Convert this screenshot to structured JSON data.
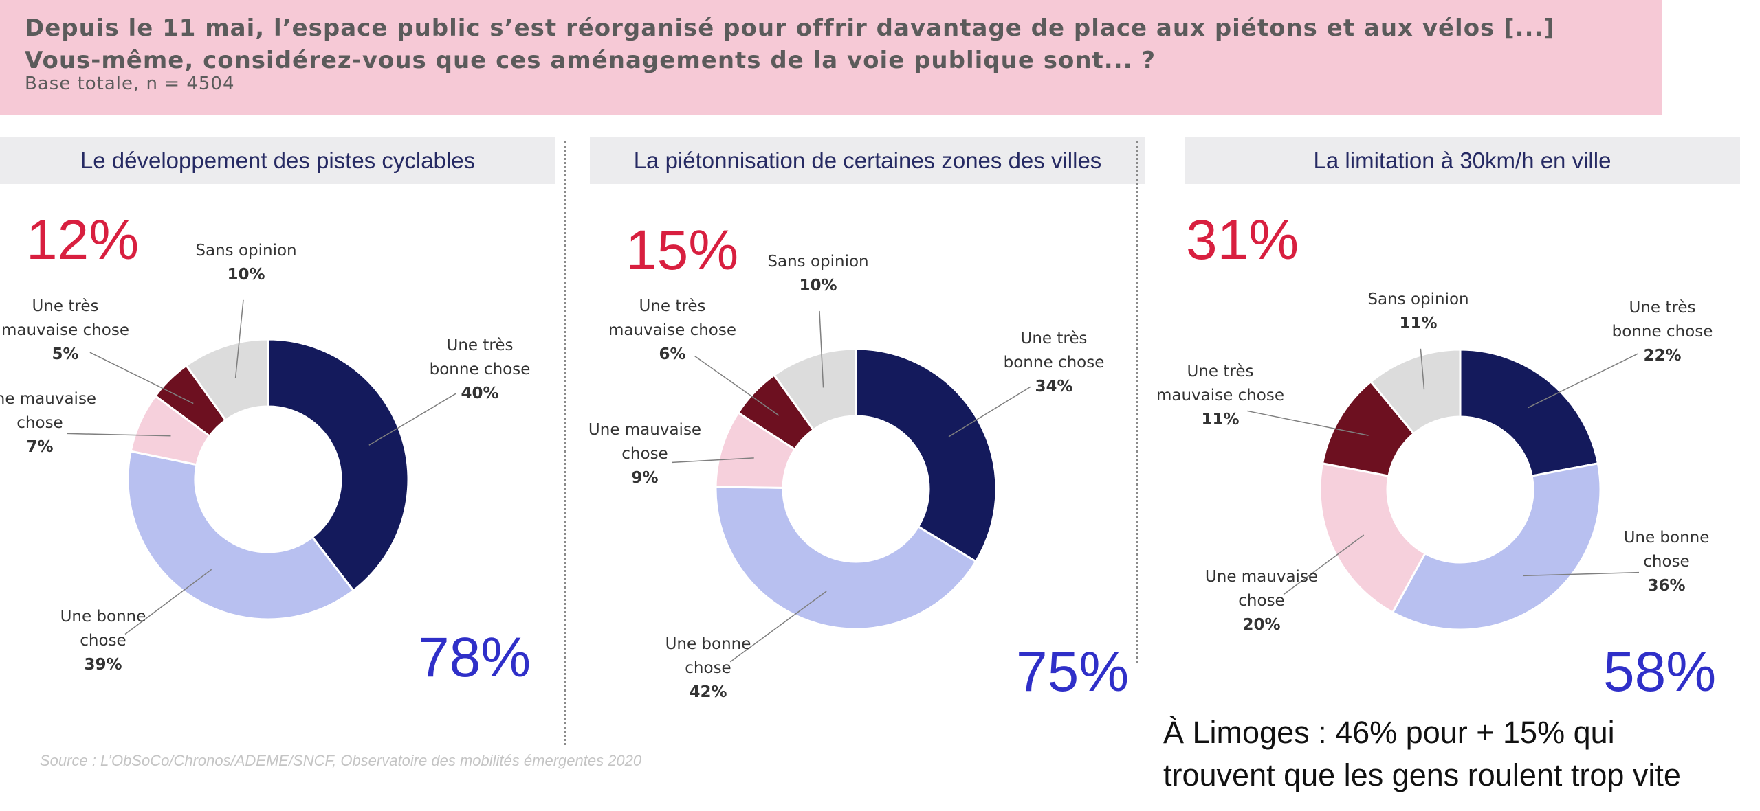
{
  "question": {
    "text": "Depuis le 11 mai, l’espace public s’est réorganisé pour offrir davantage de place aux piétons et aux vélos [...] Vous-même, considérez-vous que ces aménagements de la voie publique sont... ?",
    "base": "Base totale, n = 4504"
  },
  "note": {
    "line1": "À Limoges : 46% pour + 15% qui",
    "line2": "trouvent que les gens roulent trop vite"
  },
  "source": "Source : L’ObSoCo/Chronos/ADEME/SNCF, Observatoire des mobilités émergentes 2020",
  "colors": {
    "tres_bonne": "#141a5c",
    "bonne": "#b8c0f0",
    "mauvaise": "#f6d0dc",
    "tres_mauvaise": "#6d1020",
    "sans_opinion": "#dcdcdc",
    "negative_total": "#d81f3f",
    "positive_total": "#2f2fc8"
  },
  "chart_data": [
    {
      "type": "pie",
      "title": "Le développement des pistes cyclables",
      "negative_total": "12%",
      "positive_total": "78%",
      "slices": [
        {
          "key": "tres_bonne",
          "label": [
            "Une très",
            "bonne chose"
          ],
          "value": 40,
          "text": "40%"
        },
        {
          "key": "bonne",
          "label": [
            "Une bonne",
            "chose"
          ],
          "value": 39,
          "text": "39%"
        },
        {
          "key": "mauvaise",
          "label": [
            "Une mauvaise",
            "chose"
          ],
          "value": 7,
          "text": "7%"
        },
        {
          "key": "tres_mauvaise",
          "label": [
            "Une très",
            "mauvaise chose"
          ],
          "value": 5,
          "text": "5%"
        },
        {
          "key": "sans_opinion",
          "label": [
            "Sans opinion"
          ],
          "value": 10,
          "text": "10%"
        }
      ]
    },
    {
      "type": "pie",
      "title": "La piétonnisation de certaines zones des villes",
      "negative_total": "15%",
      "positive_total": "75%",
      "slices": [
        {
          "key": "tres_bonne",
          "label": [
            "Une très",
            "bonne chose"
          ],
          "value": 34,
          "text": "34%"
        },
        {
          "key": "bonne",
          "label": [
            "Une bonne",
            "chose"
          ],
          "value": 42,
          "text": "42%"
        },
        {
          "key": "mauvaise",
          "label": [
            "Une mauvaise",
            "chose"
          ],
          "value": 9,
          "text": "9%"
        },
        {
          "key": "tres_mauvaise",
          "label": [
            "Une très",
            "mauvaise chose"
          ],
          "value": 6,
          "text": "6%"
        },
        {
          "key": "sans_opinion",
          "label": [
            "Sans opinion"
          ],
          "value": 10,
          "text": "10%"
        }
      ]
    },
    {
      "type": "pie",
      "title": "La limitation à 30km/h en ville",
      "negative_total": "31%",
      "positive_total": "58%",
      "slices": [
        {
          "key": "tres_bonne",
          "label": [
            "Une très",
            "bonne chose"
          ],
          "value": 22,
          "text": "22%"
        },
        {
          "key": "bonne",
          "label": [
            "Une bonne",
            "chose"
          ],
          "value": 36,
          "text": "36%"
        },
        {
          "key": "mauvaise",
          "label": [
            "Une mauvaise",
            "chose"
          ],
          "value": 20,
          "text": "20%"
        },
        {
          "key": "tres_mauvaise",
          "label": [
            "Une très",
            "mauvaise chose"
          ],
          "value": 11,
          "text": "11%"
        },
        {
          "key": "sans_opinion",
          "label": [
            "Sans opinion"
          ],
          "value": 11,
          "text": "11%"
        }
      ]
    }
  ]
}
